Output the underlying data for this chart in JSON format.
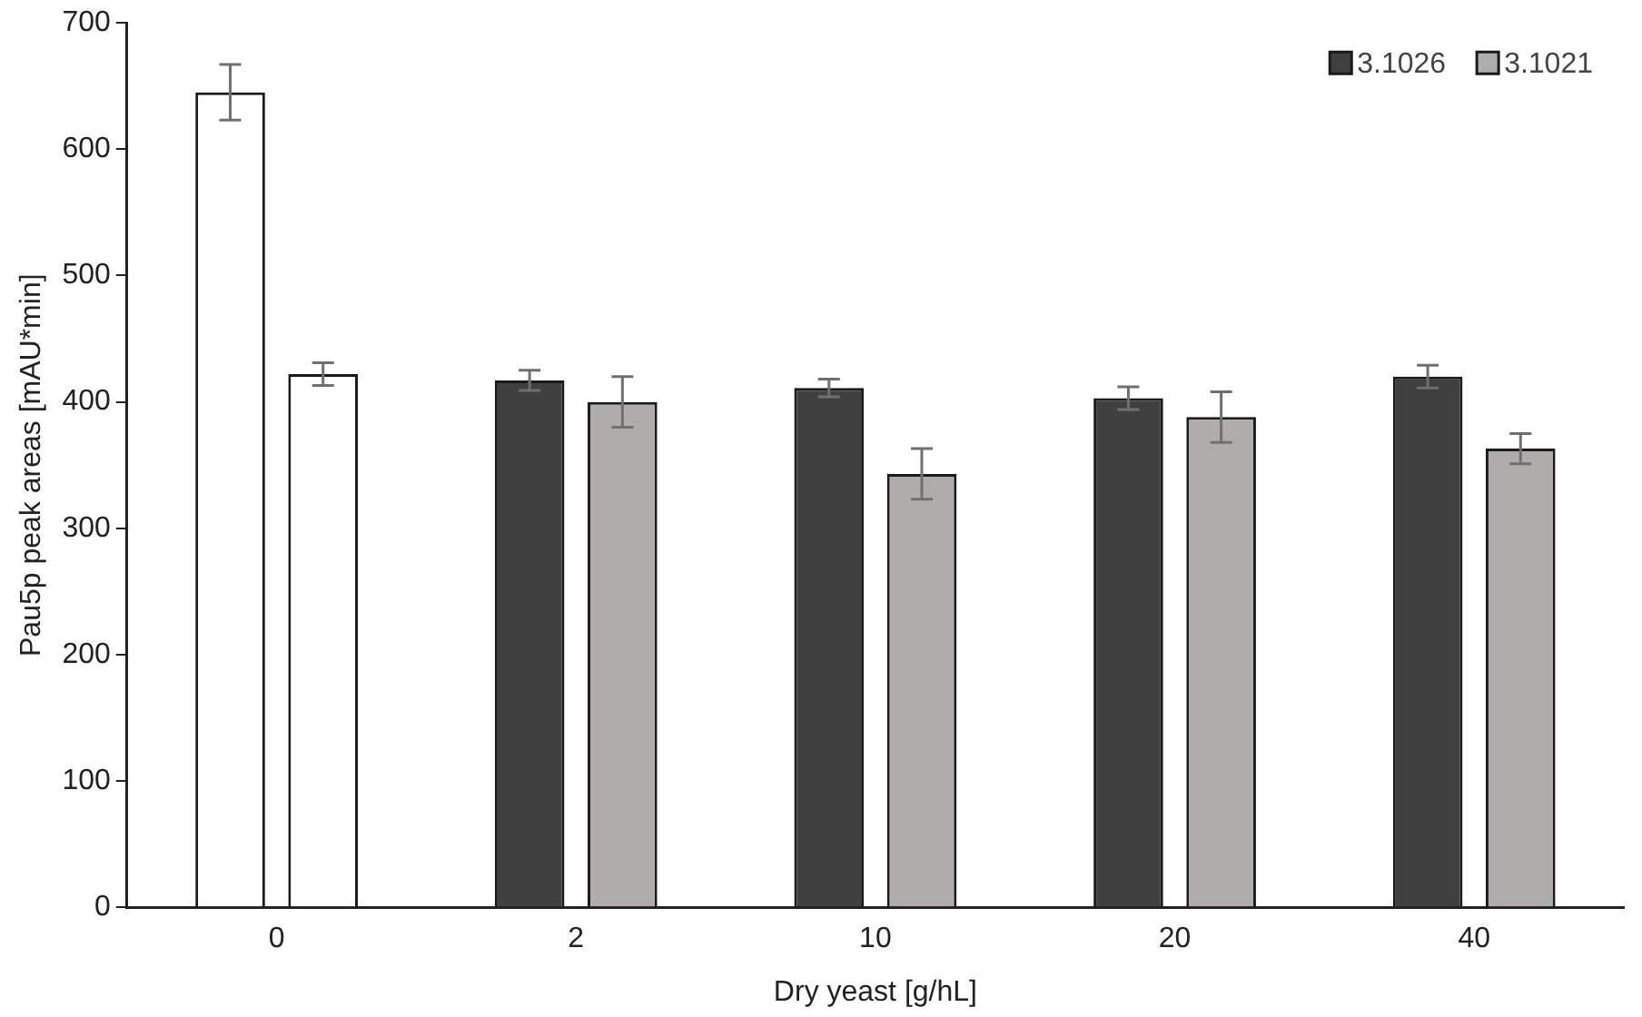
{
  "chart_data": {
    "type": "bar",
    "xlabel": "Dry yeast [g/hL]",
    "ylabel": "Pau5p peak areas [mAU*min]",
    "categories": [
      "0",
      "2",
      "10",
      "20",
      "40"
    ],
    "series": [
      {
        "name": "3.1026",
        "color": "#404040",
        "colors": [
          "#ffffff",
          "#404040",
          "#404040",
          "#404040",
          "#404040"
        ],
        "values": [
          645,
          417,
          411,
          403,
          420
        ],
        "errors": [
          22,
          8,
          7,
          9,
          9
        ]
      },
      {
        "name": "3.1021",
        "color": "#b0acab",
        "colors": [
          "#ffffff",
          "#b0acab",
          "#b0acab",
          "#b0acab",
          "#b0acab"
        ],
        "values": [
          422,
          400,
          343,
          388,
          363
        ],
        "errors": [
          9,
          20,
          20,
          20,
          12
        ]
      }
    ],
    "ylim": [
      0,
      700
    ],
    "yticks": [
      0,
      100,
      200,
      300,
      400,
      500,
      600,
      700
    ],
    "grid": false,
    "legend": "top right"
  }
}
